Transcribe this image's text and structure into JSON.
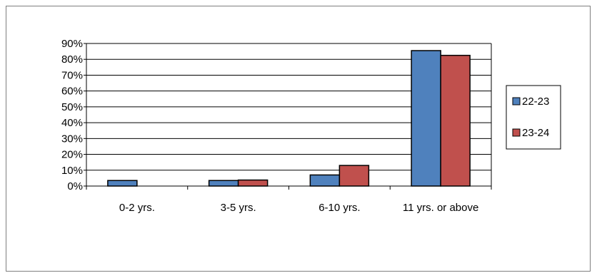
{
  "chart_data": {
    "type": "bar",
    "title": "",
    "xlabel": "",
    "ylabel": "",
    "categories": [
      "0-2 yrs.",
      "3-5 yrs.",
      "6-10 yrs.",
      "11 yrs. or above"
    ],
    "series": [
      {
        "name": "22-23",
        "color": "#4f81bd",
        "values": [
          3.5,
          3.5,
          7,
          85.5
        ]
      },
      {
        "name": "23-24",
        "color": "#c0504d",
        "values": [
          0,
          3.8,
          13,
          82.5
        ]
      }
    ],
    "ylim": [
      0,
      90
    ],
    "yticks": [
      "0%",
      "10%",
      "20%",
      "30%",
      "40%",
      "50%",
      "60%",
      "70%",
      "80%",
      "90%"
    ],
    "grid": true,
    "legend_position": "right"
  }
}
